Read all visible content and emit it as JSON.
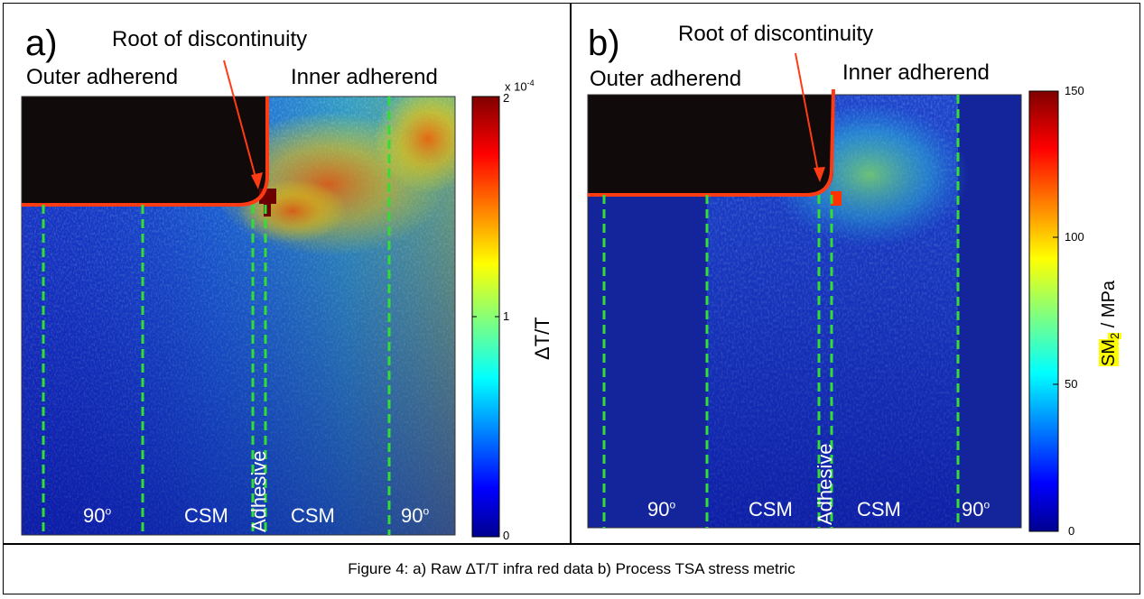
{
  "panels": [
    {
      "id": "a",
      "label": "a)",
      "root_label": "Root of discontinuity",
      "outer_label": "Outer adherend",
      "inner_label": "Inner adherend",
      "regions": [
        "90",
        "CSM",
        "Adhesive",
        "CSM",
        "90"
      ],
      "degree_mark": "o",
      "colorbar": {
        "label": "ΔT/T",
        "multiplier": "x 10",
        "exponent": "-4",
        "ticks": [
          "2",
          "1",
          "0"
        ],
        "tick_values": [
          2,
          1,
          0
        ],
        "range": [
          0,
          2
        ]
      }
    },
    {
      "id": "b",
      "label": "b)",
      "root_label": "Root of discontinuity",
      "outer_label": "Outer adherend",
      "inner_label": "Inner adherend",
      "regions": [
        "90",
        "CSM",
        "Adhesive",
        "CSM",
        "90"
      ],
      "degree_mark": "o",
      "colorbar": {
        "label_prefix": "SM",
        "label_sub": "2",
        "label_suffix": " / MPa",
        "ticks": [
          "150",
          "100",
          "50",
          "0"
        ],
        "tick_values": [
          150,
          100,
          50,
          0
        ],
        "range": [
          0,
          150
        ]
      }
    }
  ],
  "caption": "Figure 4: a) Raw ΔT/T infra red data b) Process TSA stress metric",
  "colors": {
    "boundary": "#ff3b14",
    "dashed_lines": "#33dd33",
    "mask": "#110a0a",
    "field_base": "#1a3ccc",
    "highlight": "#ffff00"
  }
}
